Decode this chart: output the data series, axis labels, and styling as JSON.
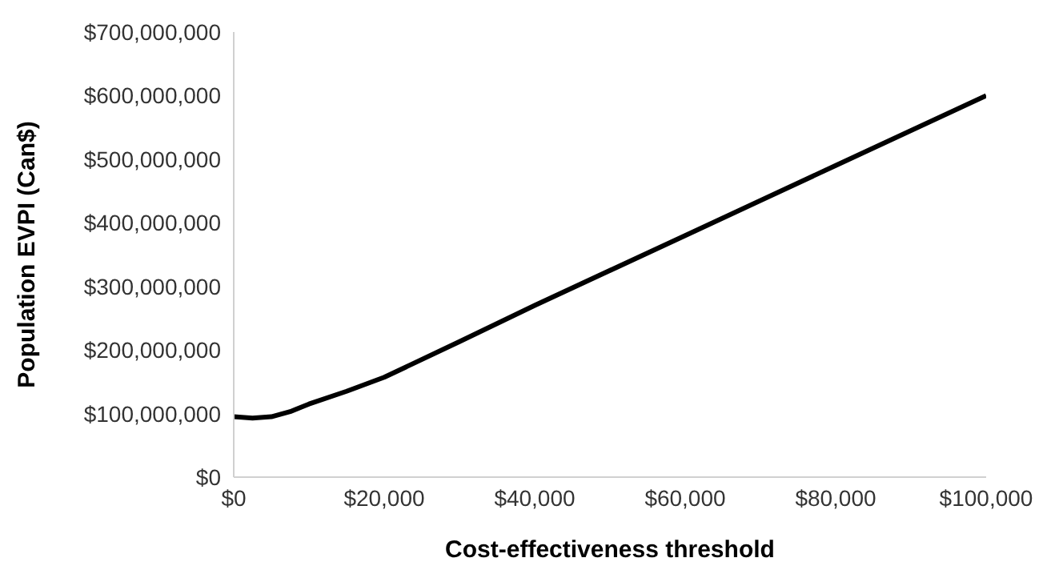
{
  "chart_data": {
    "type": "line",
    "xlabel": "Cost-effectiveness threshold",
    "ylabel": "Population EVPI (Can$)",
    "x": [
      0,
      2500,
      5000,
      7500,
      10000,
      15000,
      20000,
      30000,
      40000,
      60000,
      80000,
      100000
    ],
    "series": [
      {
        "color": "#000000",
        "values": [
          95000000,
          93000000,
          95000000,
          103000000,
          115000000,
          135000000,
          157000000,
          213000000,
          270000000,
          380000000,
          490000000,
          600000000
        ]
      }
    ],
    "xlim": [
      0,
      100000
    ],
    "xticks": [
      {
        "value": 0,
        "label": "$0"
      },
      {
        "value": 20000,
        "label": "$20,000"
      },
      {
        "value": 40000,
        "label": "$40,000"
      },
      {
        "value": 60000,
        "label": "$60,000"
      },
      {
        "value": 80000,
        "label": "$80,000"
      },
      {
        "value": 100000,
        "label": "$100,000"
      }
    ],
    "ylim": [
      0,
      700000000
    ],
    "yticks": [
      {
        "value": 0,
        "label": "$0"
      },
      {
        "value": 100000000,
        "label": "$100,000,000"
      },
      {
        "value": 200000000,
        "label": "$200,000,000"
      },
      {
        "value": 300000000,
        "label": "$300,000,000"
      },
      {
        "value": 400000000,
        "label": "$400,000,000"
      },
      {
        "value": 500000000,
        "label": "$500,000,000"
      },
      {
        "value": 600000000,
        "label": "$600,000,000"
      },
      {
        "value": 700000000,
        "label": "$700,000,000"
      }
    ],
    "grid": false,
    "legend": false,
    "marker": "none",
    "line_style": "solid"
  }
}
